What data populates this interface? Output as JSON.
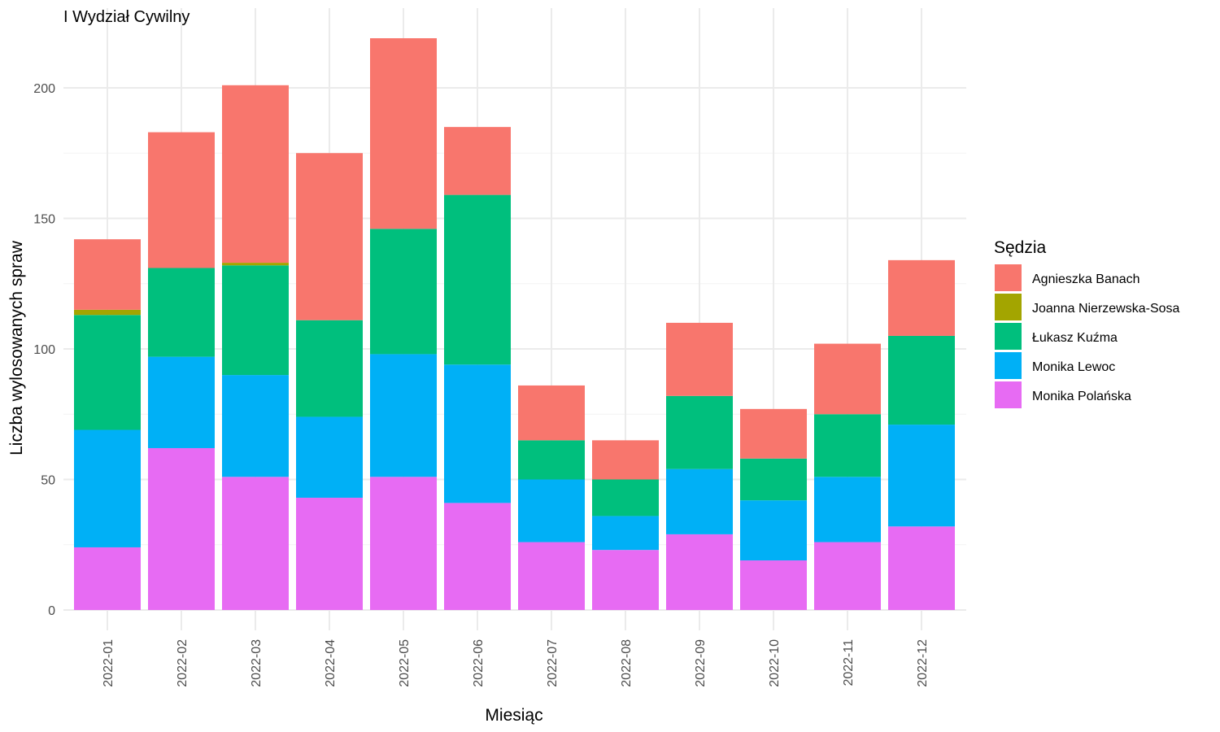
{
  "chart_data": {
    "type": "bar",
    "stacked": true,
    "title": "I Wydział Cywilny",
    "xlabel": "Miesiąc",
    "ylabel": "Liczba wylosowanych spraw",
    "ylim": [
      0,
      224
    ],
    "yticks": [
      0,
      50,
      100,
      150,
      200
    ],
    "grid": true,
    "legend_position": "right",
    "legend_title": "Sędzia",
    "categories": [
      "2022-01",
      "2022-02",
      "2022-03",
      "2022-04",
      "2022-05",
      "2022-06",
      "2022-07",
      "2022-08",
      "2022-09",
      "2022-10",
      "2022-11",
      "2022-12"
    ],
    "series": [
      {
        "name": "Agnieszka Banach",
        "color": "#F8766D",
        "values": [
          27,
          52,
          68,
          64,
          73,
          26,
          21,
          15,
          28,
          19,
          27,
          29
        ]
      },
      {
        "name": "Joanna Nierzewska-Sosa",
        "color": "#A3A500",
        "values": [
          2,
          0,
          1,
          0,
          0,
          0,
          0,
          0,
          0,
          0,
          0,
          0
        ]
      },
      {
        "name": "Łukasz Kuźma",
        "color": "#00BF7D",
        "values": [
          44,
          34,
          42,
          37,
          48,
          65,
          15,
          14,
          28,
          16,
          24,
          34
        ]
      },
      {
        "name": "Monika Lewoc",
        "color": "#00B0F6",
        "values": [
          45,
          35,
          39,
          31,
          47,
          53,
          24,
          13,
          25,
          23,
          25,
          39
        ]
      },
      {
        "name": "Monika Polańska",
        "color": "#E76BF3",
        "values": [
          24,
          62,
          51,
          43,
          51,
          41,
          26,
          23,
          29,
          19,
          26,
          32
        ]
      }
    ]
  }
}
